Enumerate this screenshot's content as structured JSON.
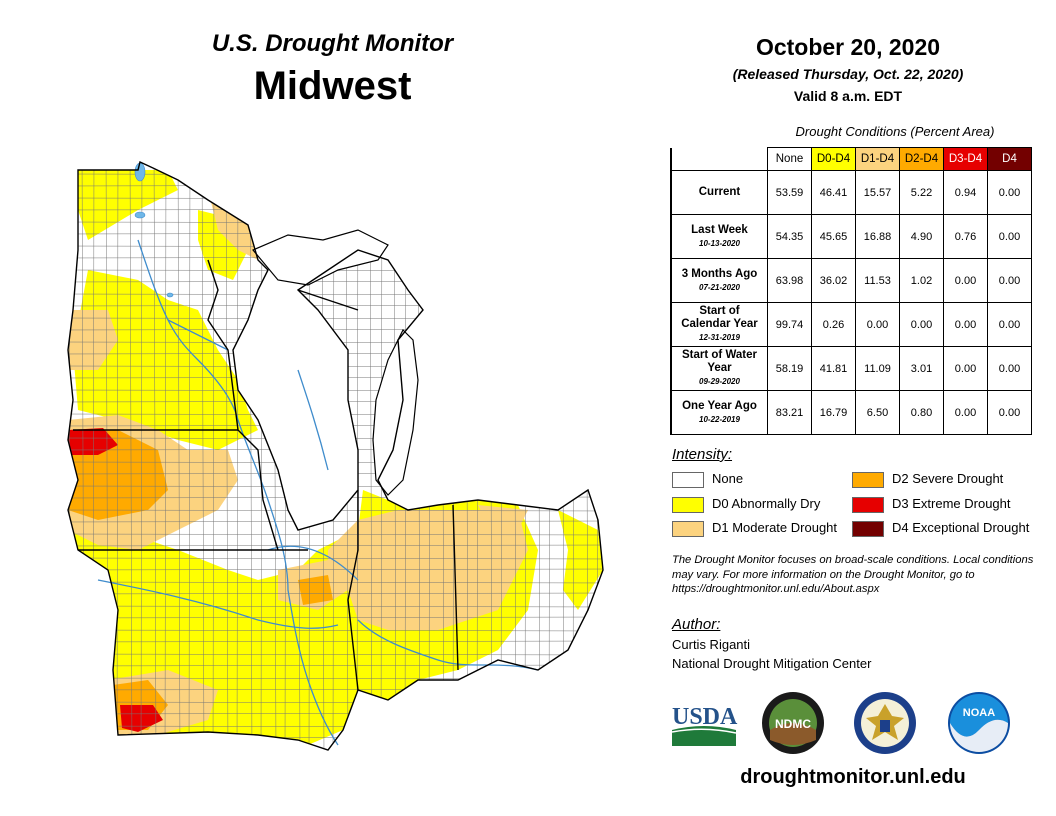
{
  "header": {
    "title_line1": "U.S. Drought Monitor",
    "title_line2": "Midwest",
    "date": "October 20, 2020",
    "released": "(Released Thursday, Oct. 22, 2020)",
    "valid": "Valid 8 a.m. EDT"
  },
  "conditions": {
    "caption": "Drought Conditions (Percent Area)",
    "columns": [
      "None",
      "D0-D4",
      "D1-D4",
      "D2-D4",
      "D3-D4",
      "D4"
    ],
    "column_colors": [
      "#ffffff",
      "#ffff00",
      "#fcd37f",
      "#ffaa00",
      "#e60000",
      "#730000"
    ],
    "rows": [
      {
        "label": "Current",
        "sub": "",
        "values": [
          "53.59",
          "46.41",
          "15.57",
          "5.22",
          "0.94",
          "0.00"
        ]
      },
      {
        "label": "Last Week",
        "sub": "10-13-2020",
        "values": [
          "54.35",
          "45.65",
          "16.88",
          "4.90",
          "0.76",
          "0.00"
        ]
      },
      {
        "label": "3 Months Ago",
        "sub": "07-21-2020",
        "values": [
          "63.98",
          "36.02",
          "11.53",
          "1.02",
          "0.00",
          "0.00"
        ]
      },
      {
        "label": "Start of Calendar Year",
        "sub": "12-31-2019",
        "values": [
          "99.74",
          "0.26",
          "0.00",
          "0.00",
          "0.00",
          "0.00"
        ]
      },
      {
        "label": "Start of Water Year",
        "sub": "09-29-2020",
        "values": [
          "58.19",
          "41.81",
          "11.09",
          "3.01",
          "0.00",
          "0.00"
        ]
      },
      {
        "label": "One Year Ago",
        "sub": "10-22-2019",
        "values": [
          "83.21",
          "16.79",
          "6.50",
          "0.80",
          "0.00",
          "0.00"
        ]
      }
    ]
  },
  "legend": {
    "title": "Intensity:",
    "items": [
      {
        "label": "None",
        "color": "#ffffff"
      },
      {
        "label": "D0 Abnormally Dry",
        "color": "#ffff00"
      },
      {
        "label": "D1 Moderate Drought",
        "color": "#fcd37f"
      },
      {
        "label": "D2 Severe Drought",
        "color": "#ffaa00"
      },
      {
        "label": "D3 Extreme Drought",
        "color": "#e60000"
      },
      {
        "label": "D4 Exceptional Drought",
        "color": "#730000"
      }
    ]
  },
  "note": "The Drought Monitor focuses on broad-scale conditions. Local conditions may vary. For more information on the Drought Monitor, go to https://droughtmonitor.unl.edu/About.aspx",
  "author": {
    "title": "Author:",
    "name": "Curtis Riganti",
    "org": "National Drought Mitigation Center"
  },
  "logos": {
    "usda": "USDA",
    "ndmc": "NDMC",
    "noaa": "NOAA"
  },
  "website": "droughtmonitor.unl.edu",
  "map_colors": {
    "none": "#ffffff",
    "d0": "#ffff00",
    "d1": "#fcd37f",
    "d2": "#ffaa00",
    "d3": "#e60000",
    "water": "#6fb7e8",
    "county_line": "#666666",
    "state_line": "#000000"
  }
}
